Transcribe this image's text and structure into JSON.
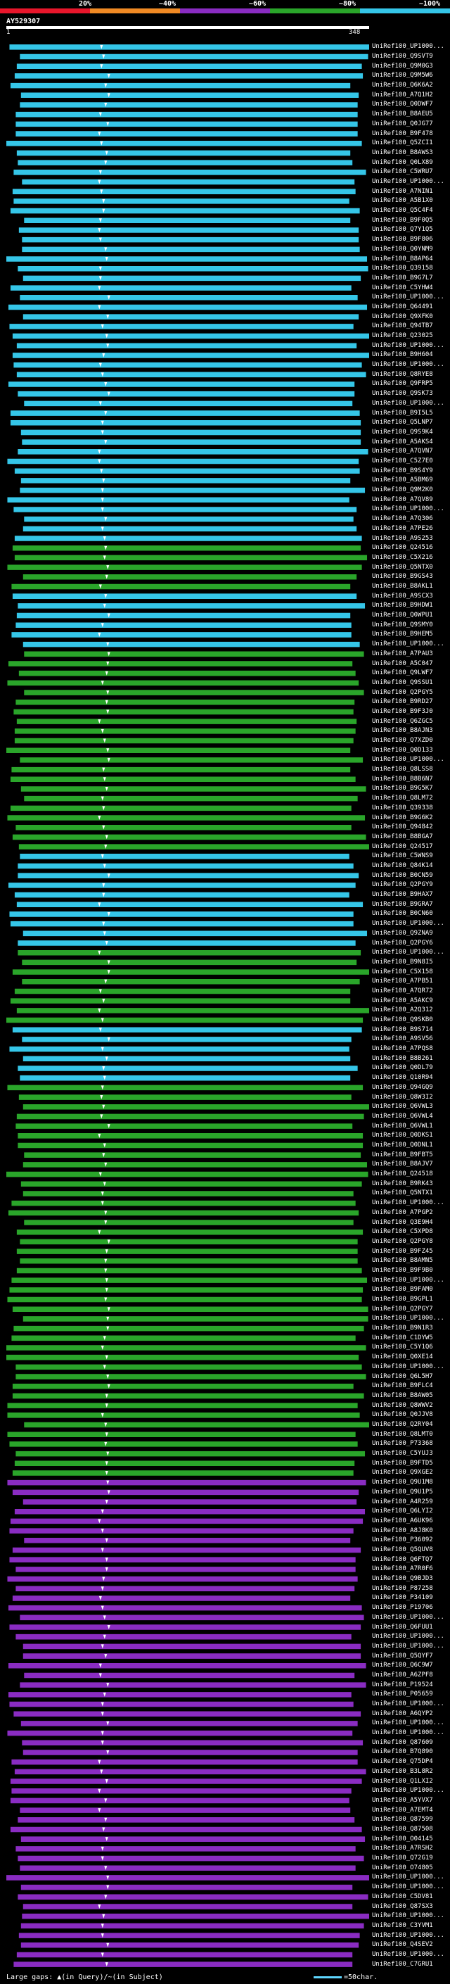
{
  "legend": {
    "thresholds": [
      {
        "label": "20%",
        "color": "#e8162b"
      },
      {
        "label": "~40%",
        "color": "#f08a24"
      },
      {
        "label": "~60%",
        "color": "#8a2cc2"
      },
      {
        "label": "~80%",
        "color": "#2aa52a"
      },
      {
        "label": "~100%",
        "color": "#35c6e8"
      }
    ]
  },
  "query": {
    "name": "AY529307",
    "start_label": "1",
    "end_label": "348"
  },
  "chart_data": {
    "type": "alignment-overview",
    "title": "AY529307",
    "query_length": 348,
    "x_range": [
      1,
      348
    ],
    "identity_bins": [
      "20%",
      "~40%",
      "~60%",
      "~80%",
      "~100%"
    ],
    "hit_count": 200,
    "hits": [
      {
        "label": "UniRef100_UP1000...",
        "identity_bin": "~100%"
      },
      {
        "label": "UniRef100_Q9SVT9",
        "identity_bin": "~100%"
      },
      {
        "label": "UniRef100_Q9M0G3",
        "identity_bin": "~100%"
      },
      {
        "label": "UniRef100_Q9M5W6",
        "identity_bin": "~100%"
      },
      {
        "label": "UniRef100_Q6K6A2",
        "identity_bin": "~100%"
      },
      {
        "label": "UniRef100_A7Q1H2",
        "identity_bin": "~100%"
      },
      {
        "label": "UniRef100_Q0DWF7",
        "identity_bin": "~100%"
      },
      {
        "label": "UniRef100_B8AEU5",
        "identity_bin": "~100%"
      },
      {
        "label": "UniRef100_Q0JG77",
        "identity_bin": "~100%"
      },
      {
        "label": "UniRef100_B9F478",
        "identity_bin": "~100%"
      },
      {
        "label": "UniRef100_Q5ZCI1",
        "identity_bin": "~100%"
      },
      {
        "label": "UniRef100_B8AWS3",
        "identity_bin": "~100%"
      },
      {
        "label": "UniRef100_Q0LX89",
        "identity_bin": "~100%"
      },
      {
        "label": "UniRef100_C5WRU7",
        "identity_bin": "~100%"
      },
      {
        "label": "UniRef100_UP1000...",
        "identity_bin": "~100%"
      },
      {
        "label": "UniRef100_A7NIN1",
        "identity_bin": "~100%"
      },
      {
        "label": "UniRef100_A5B1X0",
        "identity_bin": "~100%"
      },
      {
        "label": "UniRef100_Q5C4F4",
        "identity_bin": "~100%"
      },
      {
        "label": "UniRef100_B9F0Q5",
        "identity_bin": "~100%"
      },
      {
        "label": "UniRef100_Q7Y1Q5",
        "identity_bin": "~100%"
      },
      {
        "label": "UniRef100_B9F806",
        "identity_bin": "~100%"
      },
      {
        "label": "UniRef100_Q0YNM9",
        "identity_bin": "~100%"
      },
      {
        "label": "UniRef100_B8AP64",
        "identity_bin": "~100%"
      },
      {
        "label": "UniRef100_Q39158",
        "identity_bin": "~100%"
      },
      {
        "label": "UniRef100_B9G7L7",
        "identity_bin": "~100%"
      },
      {
        "label": "UniRef100_C5YHW4",
        "identity_bin": "~100%"
      },
      {
        "label": "UniRef100_UP1000...",
        "identity_bin": "~100%"
      },
      {
        "label": "UniRef100_Q64491",
        "identity_bin": "~100%"
      },
      {
        "label": "UniRef100_Q9XFK0",
        "identity_bin": "~100%"
      },
      {
        "label": "UniRef100_Q94TB7",
        "identity_bin": "~100%"
      },
      {
        "label": "UniRef100_Q23025",
        "identity_bin": "~100%"
      },
      {
        "label": "UniRef100_UP1000...",
        "identity_bin": "~100%"
      },
      {
        "label": "UniRef100_B9H604",
        "identity_bin": "~100%"
      },
      {
        "label": "UniRef100_UP1000...",
        "identity_bin": "~100%"
      },
      {
        "label": "UniRef100_Q8RYE8",
        "identity_bin": "~100%"
      },
      {
        "label": "UniRef100_Q9FRP5",
        "identity_bin": "~100%"
      },
      {
        "label": "UniRef100_Q9SK73",
        "identity_bin": "~100%"
      },
      {
        "label": "UniRef100_UP1000...",
        "identity_bin": "~100%"
      },
      {
        "label": "UniRef100_B9I5L5",
        "identity_bin": "~100%"
      },
      {
        "label": "UniRef100_Q5LNP7",
        "identity_bin": "~100%"
      },
      {
        "label": "UniRef100_Q9S9K4",
        "identity_bin": "~100%"
      },
      {
        "label": "UniRef100_A5AKS4",
        "identity_bin": "~100%"
      },
      {
        "label": "UniRef100_A7QVN7",
        "identity_bin": "~100%"
      },
      {
        "label": "UniRef100_C5Z7E0",
        "identity_bin": "~100%"
      },
      {
        "label": "UniRef100_B9S4Y9",
        "identity_bin": "~100%"
      },
      {
        "label": "UniRef100_A5BM69",
        "identity_bin": "~100%"
      },
      {
        "label": "UniRef100_Q9M2K0",
        "identity_bin": "~100%"
      },
      {
        "label": "UniRef100_A7QV89",
        "identity_bin": "~100%"
      },
      {
        "label": "UniRef100_UP1000...",
        "identity_bin": "~100%"
      },
      {
        "label": "UniRef100_A7Q306",
        "identity_bin": "~100%"
      },
      {
        "label": "UniRef100_A7PE26",
        "identity_bin": "~100%"
      },
      {
        "label": "UniRef100_A9S253",
        "identity_bin": "~100%"
      },
      {
        "label": "UniRef100_Q24516",
        "identity_bin": "~80%"
      },
      {
        "label": "UniRef100_C5X216",
        "identity_bin": "~80%"
      },
      {
        "label": "UniRef100_Q5NTX0",
        "identity_bin": "~80%"
      },
      {
        "label": "UniRef100_B9GS43",
        "identity_bin": "~80%"
      },
      {
        "label": "UniRef100_B8AKL1",
        "identity_bin": "~80%"
      },
      {
        "label": "UniRef100_A9SCX3",
        "identity_bin": "~100%"
      },
      {
        "label": "UniRef100_B9HDW1",
        "identity_bin": "~100%"
      },
      {
        "label": "UniRef100_Q0WPU1",
        "identity_bin": "~100%"
      },
      {
        "label": "UniRef100_Q9SMY0",
        "identity_bin": "~100%"
      },
      {
        "label": "UniRef100_B9HEM5",
        "identity_bin": "~100%"
      },
      {
        "label": "UniRef100_UP1000...",
        "identity_bin": "~100%"
      },
      {
        "label": "UniRef100_A7PAU3",
        "identity_bin": "~80%"
      },
      {
        "label": "UniRef100_A5C047",
        "identity_bin": "~80%"
      },
      {
        "label": "UniRef100_Q9LWF7",
        "identity_bin": "~80%"
      },
      {
        "label": "UniRef100_Q9SSU1",
        "identity_bin": "~80%"
      },
      {
        "label": "UniRef100_Q2PGY5",
        "identity_bin": "~80%"
      },
      {
        "label": "UniRef100_B9RD27",
        "identity_bin": "~80%"
      },
      {
        "label": "UniRef100_B9F3J0",
        "identity_bin": "~80%"
      },
      {
        "label": "UniRef100_Q6ZGC5",
        "identity_bin": "~80%"
      },
      {
        "label": "UniRef100_B8AJN3",
        "identity_bin": "~80%"
      },
      {
        "label": "UniRef100_Q7XZD0",
        "identity_bin": "~80%"
      },
      {
        "label": "UniRef100_Q0D133",
        "identity_bin": "~80%"
      },
      {
        "label": "UniRef100_UP1000...",
        "identity_bin": "~80%"
      },
      {
        "label": "UniRef100_Q8LSS8",
        "identity_bin": "~80%"
      },
      {
        "label": "UniRef100_B8B6N7",
        "identity_bin": "~80%"
      },
      {
        "label": "UniRef100_B9G5K7",
        "identity_bin": "~80%"
      },
      {
        "label": "UniRef100_Q8LM72",
        "identity_bin": "~80%"
      },
      {
        "label": "UniRef100_Q39338",
        "identity_bin": "~80%"
      },
      {
        "label": "UniRef100_B9G6K2",
        "identity_bin": "~80%"
      },
      {
        "label": "UniRef100_Q94842",
        "identity_bin": "~80%"
      },
      {
        "label": "UniRef100_B8BGA7",
        "identity_bin": "~80%"
      },
      {
        "label": "UniRef100_Q24517",
        "identity_bin": "~80%"
      },
      {
        "label": "UniRef100_C5WNS9",
        "identity_bin": "~100%"
      },
      {
        "label": "UniRef100_Q84K14",
        "identity_bin": "~100%"
      },
      {
        "label": "UniRef100_B0CN59",
        "identity_bin": "~100%"
      },
      {
        "label": "UniRef100_Q2PGY9",
        "identity_bin": "~100%"
      },
      {
        "label": "UniRef100_B9HAX7",
        "identity_bin": "~100%"
      },
      {
        "label": "UniRef100_B9GRA7",
        "identity_bin": "~100%"
      },
      {
        "label": "UniRef100_B0CN60",
        "identity_bin": "~100%"
      },
      {
        "label": "UniRef100_UP1000...",
        "identity_bin": "~100%"
      },
      {
        "label": "UniRef100_Q9ZNA9",
        "identity_bin": "~100%"
      },
      {
        "label": "UniRef100_Q2PGY6",
        "identity_bin": "~100%"
      },
      {
        "label": "UniRef100_UP1000...",
        "identity_bin": "~80%"
      },
      {
        "label": "UniRef100_B9N8I5",
        "identity_bin": "~80%"
      },
      {
        "label": "UniRef100_C5X158",
        "identity_bin": "~80%"
      },
      {
        "label": "UniRef100_A7PB51",
        "identity_bin": "~80%"
      },
      {
        "label": "UniRef100_A7QR72",
        "identity_bin": "~80%"
      },
      {
        "label": "UniRef100_A5AKC9",
        "identity_bin": "~80%"
      },
      {
        "label": "UniRef100_A2Q312",
        "identity_bin": "~80%"
      },
      {
        "label": "UniRef100_Q9SKB0",
        "identity_bin": "~80%"
      },
      {
        "label": "UniRef100_B9S714",
        "identity_bin": "~100%"
      },
      {
        "label": "UniRef100_A9SV56",
        "identity_bin": "~100%"
      },
      {
        "label": "UniRef100_A7PQS8",
        "identity_bin": "~100%"
      },
      {
        "label": "UniRef100_B8B261",
        "identity_bin": "~100%"
      },
      {
        "label": "UniRef100_Q0DL79",
        "identity_bin": "~100%"
      },
      {
        "label": "UniRef100_Q10R94",
        "identity_bin": "~100%"
      },
      {
        "label": "UniRef100_Q94GQ9",
        "identity_bin": "~80%"
      },
      {
        "label": "UniRef100_Q8W3I2",
        "identity_bin": "~80%"
      },
      {
        "label": "UniRef100_Q6VWL3",
        "identity_bin": "~80%"
      },
      {
        "label": "UniRef100_Q6VWL4",
        "identity_bin": "~80%"
      },
      {
        "label": "UniRef100_Q6VWL1",
        "identity_bin": "~80%"
      },
      {
        "label": "UniRef100_Q0DKS1",
        "identity_bin": "~80%"
      },
      {
        "label": "UniRef100_Q0DNL1",
        "identity_bin": "~80%"
      },
      {
        "label": "UniRef100_B9FBT5",
        "identity_bin": "~80%"
      },
      {
        "label": "UniRef100_B8AJV7",
        "identity_bin": "~80%"
      },
      {
        "label": "UniRef100_Q24518",
        "identity_bin": "~80%"
      },
      {
        "label": "UniRef100_B9RK43",
        "identity_bin": "~80%"
      },
      {
        "label": "UniRef100_Q5NTX1",
        "identity_bin": "~80%"
      },
      {
        "label": "UniRef100_UP1000...",
        "identity_bin": "~80%"
      },
      {
        "label": "UniRef100_A7PGP2",
        "identity_bin": "~80%"
      },
      {
        "label": "UniRef100_Q3E9H4",
        "identity_bin": "~80%"
      },
      {
        "label": "UniRef100_C5XPD8",
        "identity_bin": "~80%"
      },
      {
        "label": "UniRef100_Q2PGY8",
        "identity_bin": "~80%"
      },
      {
        "label": "UniRef100_B9FZ45",
        "identity_bin": "~80%"
      },
      {
        "label": "UniRef100_B8AMN5",
        "identity_bin": "~80%"
      },
      {
        "label": "UniRef100_B9F9B0",
        "identity_bin": "~80%"
      },
      {
        "label": "UniRef100_UP1000...",
        "identity_bin": "~80%"
      },
      {
        "label": "UniRef100_B9FAM0",
        "identity_bin": "~80%"
      },
      {
        "label": "UniRef100_B9GPL1",
        "identity_bin": "~80%"
      },
      {
        "label": "UniRef100_Q2PGY7",
        "identity_bin": "~80%"
      },
      {
        "label": "UniRef100_UP1000...",
        "identity_bin": "~80%"
      },
      {
        "label": "UniRef100_B9N1R3",
        "identity_bin": "~80%"
      },
      {
        "label": "UniRef100_C1DYW5",
        "identity_bin": "~80%"
      },
      {
        "label": "UniRef100_C5Y1Q6",
        "identity_bin": "~80%"
      },
      {
        "label": "UniRef100_Q0XE14",
        "identity_bin": "~80%"
      },
      {
        "label": "UniRef100_UP1000...",
        "identity_bin": "~80%"
      },
      {
        "label": "UniRef100_Q6L5H7",
        "identity_bin": "~80%"
      },
      {
        "label": "UniRef100_B9FLC4",
        "identity_bin": "~80%"
      },
      {
        "label": "UniRef100_B8AW05",
        "identity_bin": "~80%"
      },
      {
        "label": "UniRef100_Q8WWV2",
        "identity_bin": "~80%"
      },
      {
        "label": "UniRef100_Q0JJV8",
        "identity_bin": "~80%"
      },
      {
        "label": "UniRef100_Q2RY04",
        "identity_bin": "~80%"
      },
      {
        "label": "UniRef100_Q8LMT0",
        "identity_bin": "~80%"
      },
      {
        "label": "UniRef100_P73368",
        "identity_bin": "~80%"
      },
      {
        "label": "UniRef100_C5YUJ3",
        "identity_bin": "~80%"
      },
      {
        "label": "UniRef100_B9FTD5",
        "identity_bin": "~80%"
      },
      {
        "label": "UniRef100_Q9XGE2",
        "identity_bin": "~80%"
      },
      {
        "label": "UniRef100_Q9U1M8",
        "identity_bin": "~60%"
      },
      {
        "label": "UniRef100_Q9U1P5",
        "identity_bin": "~60%"
      },
      {
        "label": "UniRef100_A4R259",
        "identity_bin": "~60%"
      },
      {
        "label": "UniRef100_Q6LYI2",
        "identity_bin": "~60%"
      },
      {
        "label": "UniRef100_A6UK96",
        "identity_bin": "~60%"
      },
      {
        "label": "UniRef100_A8J8K0",
        "identity_bin": "~60%"
      },
      {
        "label": "UniRef100_P36092",
        "identity_bin": "~60%"
      },
      {
        "label": "UniRef100_Q5QUV8",
        "identity_bin": "~60%"
      },
      {
        "label": "UniRef100_Q6FTQ7",
        "identity_bin": "~60%"
      },
      {
        "label": "UniRef100_A7R0F6",
        "identity_bin": "~60%"
      },
      {
        "label": "UniRef100_Q9BJD3",
        "identity_bin": "~60%"
      },
      {
        "label": "UniRef100_P87258",
        "identity_bin": "~60%"
      },
      {
        "label": "UniRef100_P34109",
        "identity_bin": "~60%"
      },
      {
        "label": "UniRef100_P19706",
        "identity_bin": "~60%"
      },
      {
        "label": "UniRef100_UP1000...",
        "identity_bin": "~60%"
      },
      {
        "label": "UniRef100_Q6FUU1",
        "identity_bin": "~60%"
      },
      {
        "label": "UniRef100_UP1000...",
        "identity_bin": "~60%"
      },
      {
        "label": "UniRef100_UP1000...",
        "identity_bin": "~60%"
      },
      {
        "label": "UniRef100_Q5QYF7",
        "identity_bin": "~60%"
      },
      {
        "label": "UniRef100_Q6C9W7",
        "identity_bin": "~60%"
      },
      {
        "label": "UniRef100_A6ZPF8",
        "identity_bin": "~60%"
      },
      {
        "label": "UniRef100_P19524",
        "identity_bin": "~60%"
      },
      {
        "label": "UniRef100_P05659",
        "identity_bin": "~60%"
      },
      {
        "label": "UniRef100_UP1000...",
        "identity_bin": "~60%"
      },
      {
        "label": "UniRef100_A6QYP2",
        "identity_bin": "~60%"
      },
      {
        "label": "UniRef100_UP1000...",
        "identity_bin": "~60%"
      },
      {
        "label": "UniRef100_UP1000...",
        "identity_bin": "~60%"
      },
      {
        "label": "UniRef100_Q87609",
        "identity_bin": "~60%"
      },
      {
        "label": "UniRef100_B7Q890",
        "identity_bin": "~60%"
      },
      {
        "label": "UniRef100_Q75DP4",
        "identity_bin": "~60%"
      },
      {
        "label": "UniRef100_B3L8R2",
        "identity_bin": "~60%"
      },
      {
        "label": "UniRef100_Q1LXI2",
        "identity_bin": "~60%"
      },
      {
        "label": "UniRef100_UP1000...",
        "identity_bin": "~60%"
      },
      {
        "label": "UniRef100_A5YVX7",
        "identity_bin": "~60%"
      },
      {
        "label": "UniRef100_A7EMT4",
        "identity_bin": "~60%"
      },
      {
        "label": "UniRef100_Q87599",
        "identity_bin": "~60%"
      },
      {
        "label": "UniRef100_Q87508",
        "identity_bin": "~60%"
      },
      {
        "label": "UniRef100_O04145",
        "identity_bin": "~60%"
      },
      {
        "label": "UniRef100_A7RSH2",
        "identity_bin": "~60%"
      },
      {
        "label": "UniRef100_Q72G19",
        "identity_bin": "~60%"
      },
      {
        "label": "UniRef100_O74805",
        "identity_bin": "~60%"
      },
      {
        "label": "UniRef100_UP1000...",
        "identity_bin": "~60%"
      },
      {
        "label": "UniRef100_UP1000...",
        "identity_bin": "~60%"
      },
      {
        "label": "UniRef100_C5DV81",
        "identity_bin": "~60%"
      },
      {
        "label": "UniRef100_Q87SX3",
        "identity_bin": "~60%"
      },
      {
        "label": "UniRef100_UP1000...",
        "identity_bin": "~60%"
      },
      {
        "label": "UniRef100_C3YVM1",
        "identity_bin": "~60%"
      },
      {
        "label": "UniRef100_UP1000...",
        "identity_bin": "~60%"
      },
      {
        "label": "UniRef100_Q4SEV2",
        "identity_bin": "~60%"
      },
      {
        "label": "UniRef100_UP1000...",
        "identity_bin": "~60%"
      },
      {
        "label": "UniRef100_C7GRU1",
        "identity_bin": "~60%"
      }
    ]
  },
  "footer": {
    "text": "Large gaps: ▲(in Query)/~(in Subject)",
    "scale_text": "=50char."
  }
}
